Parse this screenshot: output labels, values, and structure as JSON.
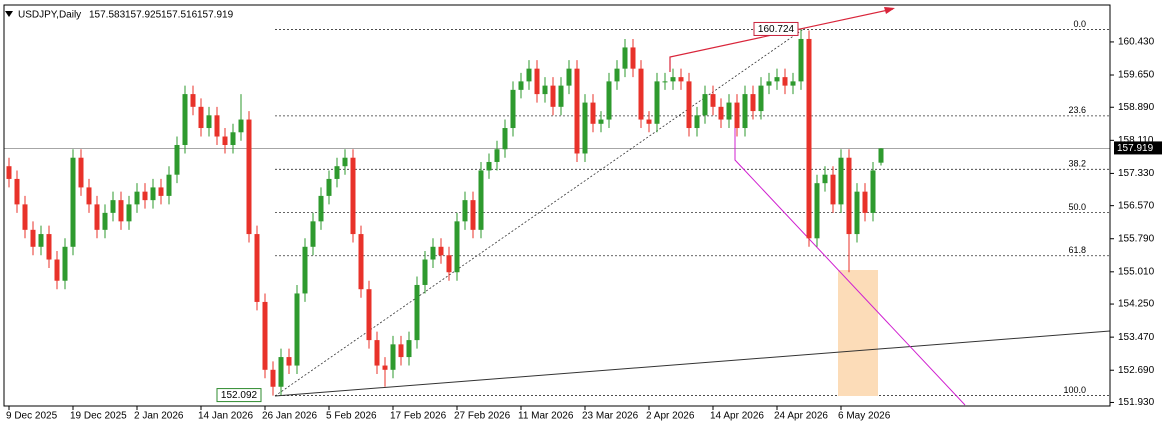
{
  "chart_data": {
    "type": "candlestick",
    "title": "USDJPY,Daily",
    "ohlc_last": [
      157.583,
      157.925,
      157.516,
      157.919
    ],
    "up_color": "#2e9a2e",
    "down_color": "#e8322a",
    "categories": [
      "9 Dec 2025",
      null,
      null,
      null,
      null,
      null,
      null,
      null,
      "19 Dec 2025",
      null,
      null,
      null,
      null,
      null,
      null,
      null,
      "2 Jan 2026",
      null,
      null,
      null,
      null,
      null,
      null,
      null,
      "14 Jan 2026",
      null,
      null,
      null,
      null,
      null,
      null,
      null,
      "26 Jan 2026",
      null,
      null,
      null,
      null,
      null,
      null,
      null,
      "5 Feb 2026",
      null,
      null,
      null,
      null,
      null,
      null,
      null,
      "17 Feb 2026",
      null,
      null,
      null,
      null,
      null,
      null,
      null,
      "27 Feb 2026",
      null,
      null,
      null,
      null,
      null,
      null,
      null,
      "11 Mar 2026",
      null,
      null,
      null,
      null,
      null,
      null,
      null,
      "23 Mar 2026",
      null,
      null,
      null,
      null,
      null,
      null,
      null,
      "2 Apr 2026",
      null,
      null,
      null,
      null,
      null,
      null,
      null,
      "14 Apr 2026",
      null,
      null,
      null,
      null,
      null,
      null,
      null,
      "24 Apr 2026",
      null,
      null,
      null,
      null,
      null,
      null,
      null,
      "6 May 2026",
      null,
      null,
      null,
      null,
      null
    ],
    "open": [
      157.5,
      157.2,
      156.6,
      156.0,
      155.6,
      155.9,
      155.3,
      154.8,
      155.6,
      157.7,
      157.0,
      156.6,
      156.0,
      156.4,
      156.7,
      156.2,
      156.6,
      156.9,
      156.7,
      157.0,
      156.8,
      157.3,
      158.0,
      159.2,
      158.9,
      158.4,
      158.7,
      158.2,
      158.0,
      158.3,
      158.6,
      155.9,
      154.3,
      152.7,
      152.3,
      153.0,
      152.8,
      154.5,
      155.6,
      156.2,
      156.8,
      157.2,
      157.5,
      157.7,
      155.9,
      154.6,
      153.4,
      152.8,
      152.7,
      153.3,
      153.0,
      153.4,
      154.7,
      155.3,
      155.6,
      155.4,
      155.0,
      156.2,
      156.7,
      156.0,
      157.4,
      157.6,
      157.9,
      158.4,
      159.3,
      159.5,
      159.8,
      159.2,
      159.4,
      158.9,
      159.4,
      159.8,
      157.8,
      159.0,
      158.5,
      158.6,
      159.5,
      159.8,
      160.3,
      159.8,
      158.6,
      158.5,
      159.5,
      159.5,
      159.6,
      159.5,
      158.4,
      158.7,
      159.2,
      158.9,
      158.6,
      159.0,
      158.4,
      159.2,
      158.8,
      159.4,
      159.5,
      159.6,
      159.4,
      159.5,
      160.5,
      155.8,
      157.1,
      157.3,
      156.6,
      157.7,
      155.9,
      156.9,
      156.4,
      157.583
    ],
    "high": [
      157.7,
      157.4,
      156.8,
      156.2,
      156.1,
      156.1,
      155.5,
      155.8,
      157.9,
      157.9,
      157.2,
      156.8,
      156.6,
      156.9,
      156.9,
      156.8,
      157.1,
      157.1,
      157.2,
      157.2,
      157.5,
      158.2,
      159.4,
      159.4,
      159.1,
      158.9,
      158.9,
      158.4,
      158.5,
      159.2,
      158.8,
      156.1,
      154.5,
      152.9,
      153.2,
      153.2,
      154.7,
      155.8,
      156.4,
      157.0,
      157.4,
      157.7,
      157.9,
      157.9,
      156.1,
      154.8,
      153.6,
      153.0,
      153.5,
      153.5,
      153.6,
      154.9,
      155.5,
      155.8,
      155.8,
      155.6,
      156.4,
      156.9,
      156.9,
      157.6,
      157.8,
      158.1,
      158.6,
      159.5,
      159.7,
      160.0,
      160.0,
      159.6,
      159.6,
      159.6,
      160.0,
      160.0,
      159.2,
      159.2,
      158.8,
      159.7,
      160.0,
      160.5,
      160.5,
      160.0,
      158.8,
      159.7,
      159.7,
      159.8,
      159.8,
      159.7,
      158.9,
      159.4,
      159.4,
      159.1,
      159.2,
      159.2,
      159.4,
      159.4,
      159.6,
      159.7,
      159.8,
      159.8,
      159.7,
      160.724,
      160.7,
      157.3,
      157.5,
      157.5,
      157.9,
      157.9,
      157.1,
      157.1,
      157.6,
      157.925
    ],
    "low": [
      157.0,
      156.4,
      155.8,
      155.4,
      155.4,
      155.1,
      154.6,
      154.6,
      155.4,
      156.8,
      156.4,
      155.8,
      155.8,
      156.2,
      156.0,
      156.0,
      156.4,
      156.5,
      156.5,
      156.6,
      156.6,
      157.1,
      157.8,
      158.7,
      158.2,
      158.2,
      158.0,
      157.8,
      157.8,
      158.1,
      155.7,
      154.1,
      152.5,
      152.092,
      152.1,
      152.6,
      152.6,
      154.3,
      155.4,
      156.0,
      156.6,
      157.0,
      157.3,
      155.7,
      154.4,
      153.2,
      152.6,
      152.3,
      152.5,
      152.8,
      152.8,
      153.2,
      154.5,
      155.1,
      155.2,
      154.8,
      154.8,
      156.0,
      155.8,
      155.8,
      157.2,
      157.4,
      157.7,
      158.2,
      159.1,
      159.3,
      159.0,
      159.0,
      158.7,
      158.7,
      159.2,
      157.6,
      157.6,
      158.3,
      158.3,
      158.4,
      159.3,
      159.6,
      159.6,
      158.4,
      158.3,
      158.3,
      159.3,
      159.3,
      159.3,
      158.2,
      158.2,
      158.5,
      158.7,
      158.4,
      158.4,
      158.2,
      158.2,
      158.6,
      158.6,
      159.2,
      159.3,
      159.2,
      159.2,
      159.3,
      155.6,
      155.6,
      156.9,
      156.4,
      156.4,
      155.0,
      155.7,
      156.2,
      156.2,
      157.516
    ],
    "close": [
      157.2,
      156.6,
      156.0,
      155.6,
      155.9,
      155.3,
      154.8,
      155.6,
      157.7,
      157.0,
      156.6,
      156.0,
      156.4,
      156.7,
      156.2,
      156.6,
      156.9,
      156.7,
      157.0,
      156.8,
      157.3,
      158.0,
      159.2,
      158.9,
      158.4,
      158.7,
      158.2,
      158.0,
      158.3,
      158.6,
      155.9,
      154.3,
      152.7,
      152.3,
      153.0,
      152.8,
      154.5,
      155.6,
      156.2,
      156.8,
      157.2,
      157.5,
      157.7,
      155.9,
      154.6,
      153.4,
      152.8,
      152.7,
      153.3,
      153.0,
      153.4,
      154.7,
      155.3,
      155.6,
      155.4,
      155.0,
      156.2,
      156.7,
      156.0,
      157.4,
      157.6,
      157.9,
      158.4,
      159.3,
      159.5,
      159.8,
      159.2,
      159.4,
      158.9,
      159.4,
      159.8,
      157.8,
      159.0,
      158.5,
      158.6,
      159.5,
      159.8,
      160.3,
      159.8,
      158.6,
      158.5,
      159.5,
      159.5,
      159.6,
      159.5,
      158.4,
      158.7,
      159.2,
      158.9,
      158.6,
      159.0,
      158.4,
      159.2,
      158.8,
      159.4,
      159.5,
      159.6,
      159.4,
      159.5,
      160.5,
      155.8,
      157.1,
      157.3,
      156.6,
      157.7,
      155.9,
      156.9,
      156.4,
      157.4,
      157.919
    ],
    "ylim": [
      151.87,
      161.23
    ],
    "yticks": [
      {
        "value": 160.43,
        "label": "160.430"
      },
      {
        "value": 159.65,
        "label": "159.650"
      },
      {
        "value": 158.89,
        "label": "158.890"
      },
      {
        "value": 158.11,
        "label": "158.110"
      },
      {
        "value": 157.33,
        "label": "157.330"
      },
      {
        "value": 156.57,
        "label": "156.570"
      },
      {
        "value": 155.79,
        "label": "155.790"
      },
      {
        "value": 155.01,
        "label": "155.010"
      },
      {
        "value": 154.25,
        "label": "154.250"
      },
      {
        "value": 153.47,
        "label": "153.470"
      },
      {
        "value": 152.69,
        "label": "152.690"
      },
      {
        "value": 151.93,
        "label": "151.930"
      }
    ],
    "fib_high": 160.724,
    "fib_low": 152.092,
    "fib_levels": [
      {
        "value": 0,
        "label": "0.0"
      },
      {
        "value": 23.6,
        "label": "23.6"
      },
      {
        "value": 38.2,
        "label": "38.2"
      },
      {
        "value": 50,
        "label": "50.0"
      },
      {
        "value": 61.8,
        "label": "61.8"
      },
      {
        "value": 100,
        "label": "100.0"
      }
    ],
    "current_price": 157.919
  }
}
